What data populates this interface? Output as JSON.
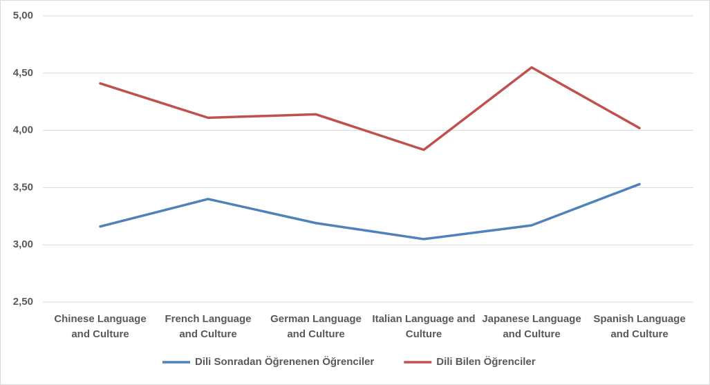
{
  "chart_data": {
    "type": "line",
    "categories": [
      "Chinese Language and Culture",
      "French Language and Culture",
      "German Language and Culture",
      "Italian Language and Culture",
      "Japanese Language and Culture",
      "Spanish Language and Culture"
    ],
    "series": [
      {
        "name": "Dili Sonradan Öğrenenen Öğrenciler",
        "color": "#4f81bd",
        "values": [
          3.16,
          3.4,
          3.19,
          3.05,
          3.17,
          3.53
        ]
      },
      {
        "name": "Dili Bilen Öğrenciler",
        "color": "#c0504d",
        "values": [
          4.41,
          4.11,
          4.14,
          3.83,
          4.55,
          4.02
        ]
      }
    ],
    "ylim": [
      2.5,
      5
    ],
    "yticks": [
      {
        "value": 2.5,
        "label": "2,50"
      },
      {
        "value": 3,
        "label": "3,00"
      },
      {
        "value": 3.5,
        "label": "3,50"
      },
      {
        "value": 4,
        "label": "4,00"
      },
      {
        "value": 4.5,
        "label": "4,50"
      },
      {
        "value": 5,
        "label": "5,00"
      }
    ],
    "grid": true,
    "legend": "bottom"
  }
}
